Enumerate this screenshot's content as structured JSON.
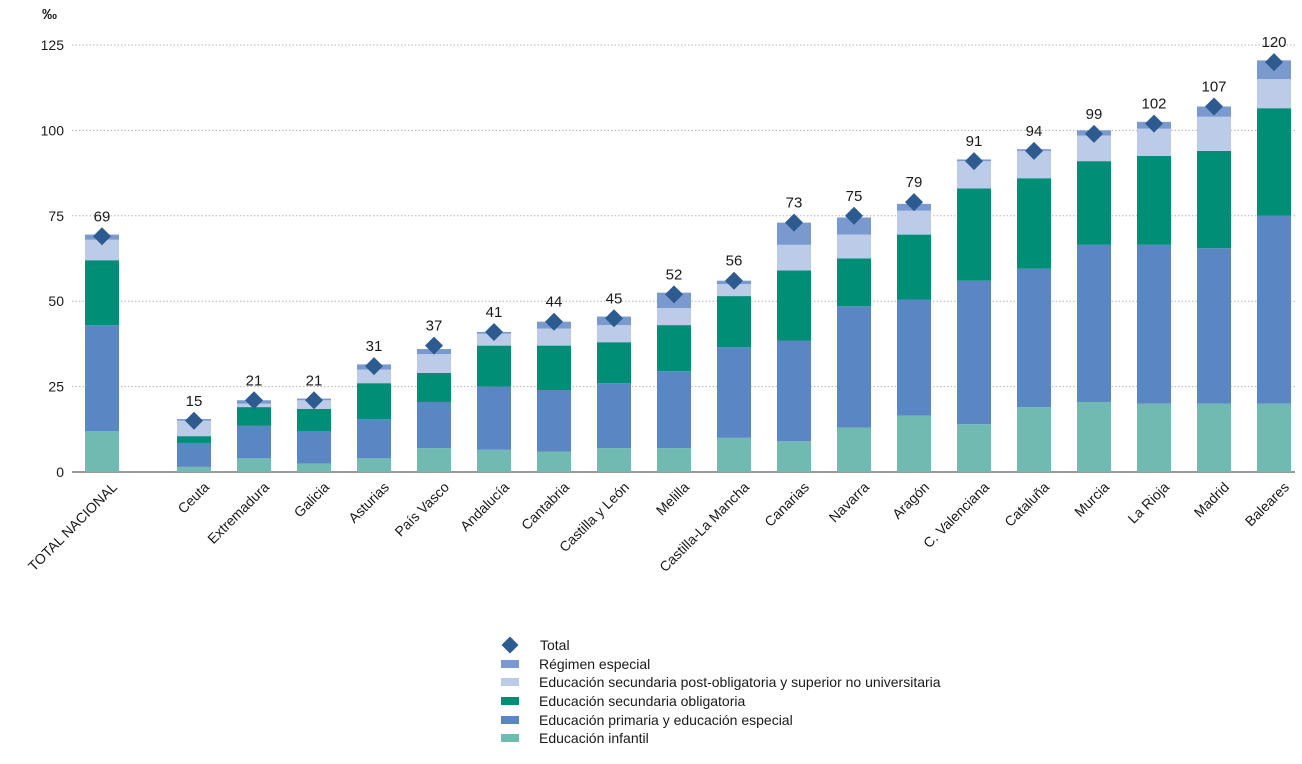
{
  "chart_data": {
    "type": "bar",
    "stacked": true,
    "unit_label": "‰",
    "ylim": [
      0,
      125
    ],
    "yticks": [
      0,
      25,
      50,
      75,
      100,
      125
    ],
    "grid": true,
    "legend_position": "bottom-center",
    "categories": [
      "TOTAL NACIONAL",
      "Ceuta",
      "Extremadura",
      "Galicia",
      "Asturias",
      "País Vasco",
      "Andalucía",
      "Cantabria",
      "Castilla y León",
      "Melilla",
      "Castilla-La Mancha",
      "Canarias",
      "Navarra",
      "Aragón",
      "C. Valenciana",
      "Cataluña",
      "Murcia",
      "La Rioja",
      "Madrid",
      "Baleares"
    ],
    "series": [
      {
        "name": "Educación infantil",
        "color": "#70bab1",
        "values": [
          12,
          1.5,
          4,
          2.5,
          4,
          7,
          6.5,
          6,
          7,
          7,
          10,
          9,
          13,
          16.5,
          14,
          19,
          20.5,
          20,
          20,
          20
        ]
      },
      {
        "name": "Educación primaria y educación especial",
        "color": "#5b86c4",
        "values": [
          31,
          7,
          9.5,
          9.5,
          11.5,
          13.5,
          18.5,
          18,
          19,
          22.5,
          26.5,
          29.5,
          35.5,
          34,
          42,
          40.5,
          46,
          46.5,
          45.5,
          55
        ]
      },
      {
        "name": "Educación secundaria obligatoria",
        "color": "#008e76",
        "values": [
          19,
          2,
          5.5,
          6.5,
          10.5,
          8.5,
          12,
          13,
          12,
          13.5,
          15,
          20.5,
          14,
          19,
          27,
          26.5,
          24.5,
          26,
          28.5,
          31.5
        ]
      },
      {
        "name": "Educación secundaria post-obligatoria y superior no universitaria",
        "color": "#bccbe8",
        "values": [
          6,
          4.5,
          1,
          2.5,
          4,
          5.5,
          3.5,
          5,
          5,
          5,
          3.5,
          7.5,
          7,
          7,
          8,
          8,
          7.5,
          8,
          10,
          8.5
        ]
      },
      {
        "name": "Régimen especial",
        "color": "#7999cf",
        "values": [
          1.5,
          0.5,
          1,
          0.5,
          1.5,
          1.5,
          0.5,
          2,
          2.5,
          4.5,
          1,
          6.5,
          5,
          2,
          0.5,
          0.5,
          1.5,
          2,
          3,
          5.5
        ]
      }
    ],
    "totals": {
      "name": "Total",
      "color": "#2e5b8f",
      "values": [
        69,
        15,
        21,
        21,
        31,
        37,
        41,
        44,
        45,
        52,
        56,
        73,
        75,
        79,
        91,
        94,
        99,
        102,
        107,
        120
      ]
    }
  },
  "legend": [
    {
      "label": "Total",
      "shape": "diamond",
      "color": "#2e5b8f"
    },
    {
      "label": "Régimen especial",
      "shape": "swatch",
      "color": "#7999cf"
    },
    {
      "label": "Educación secundaria post-obligatoria y superior no universitaria",
      "shape": "swatch",
      "color": "#bccbe8"
    },
    {
      "label": "Educación secundaria obligatoria",
      "shape": "swatch",
      "color": "#008e76"
    },
    {
      "label": "Educación primaria y educación especial",
      "shape": "swatch",
      "color": "#5b86c4"
    },
    {
      "label": "Educación infantil",
      "shape": "swatch",
      "color": "#70bab1"
    }
  ]
}
